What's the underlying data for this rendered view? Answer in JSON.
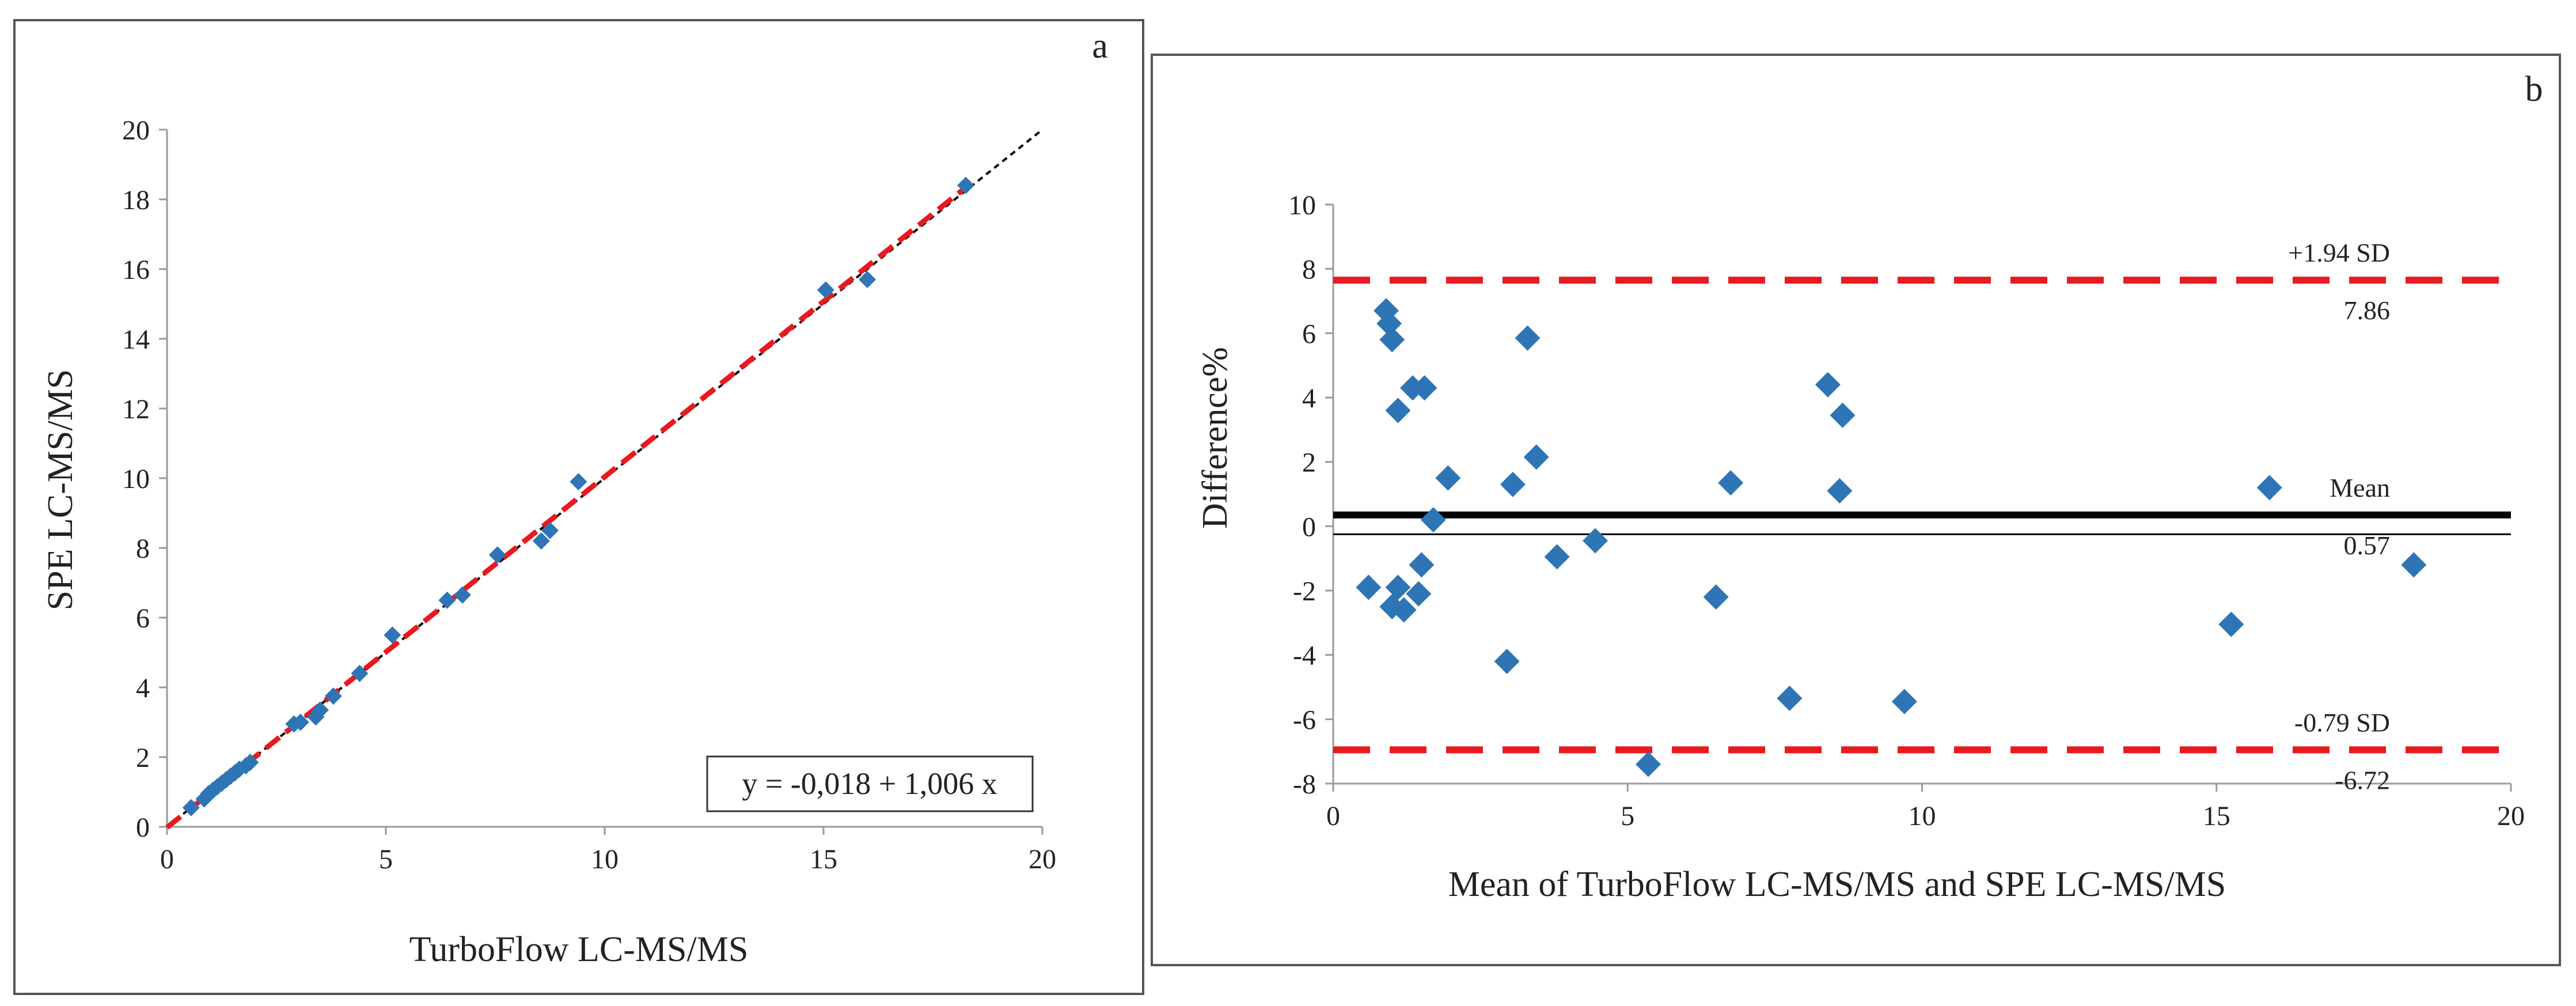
{
  "chart_data": [
    {
      "panel_label": "a",
      "type": "scatter",
      "xlabel": "TurboFlow LC-MS/MS",
      "ylabel": "SPE LC-MS/MS",
      "xlim": [
        0,
        20
      ],
      "ylim": [
        0,
        20
      ],
      "xticks": [
        0,
        5,
        10,
        15,
        20
      ],
      "yticks": [
        0,
        2,
        4,
        6,
        8,
        10,
        12,
        14,
        16,
        18,
        20
      ],
      "grid": false,
      "points": [
        {
          "x": 0.55,
          "y": 0.55
        },
        {
          "x": 0.85,
          "y": 0.8
        },
        {
          "x": 0.95,
          "y": 0.95
        },
        {
          "x": 1.05,
          "y": 1.05
        },
        {
          "x": 1.15,
          "y": 1.15
        },
        {
          "x": 1.25,
          "y": 1.25
        },
        {
          "x": 1.35,
          "y": 1.35
        },
        {
          "x": 1.45,
          "y": 1.45
        },
        {
          "x": 1.55,
          "y": 1.55
        },
        {
          "x": 1.65,
          "y": 1.65
        },
        {
          "x": 1.8,
          "y": 1.75
        },
        {
          "x": 1.9,
          "y": 1.85
        },
        {
          "x": 2.9,
          "y": 2.95
        },
        {
          "x": 3.05,
          "y": 3.0
        },
        {
          "x": 3.4,
          "y": 3.15
        },
        {
          "x": 3.5,
          "y": 3.35
        },
        {
          "x": 3.8,
          "y": 3.75
        },
        {
          "x": 4.4,
          "y": 4.4
        },
        {
          "x": 5.15,
          "y": 5.5
        },
        {
          "x": 6.4,
          "y": 6.5
        },
        {
          "x": 6.75,
          "y": 6.65
        },
        {
          "x": 7.55,
          "y": 7.8
        },
        {
          "x": 8.55,
          "y": 8.2
        },
        {
          "x": 8.75,
          "y": 8.5
        },
        {
          "x": 9.4,
          "y": 9.9
        },
        {
          "x": 15.05,
          "y": 15.4
        },
        {
          "x": 16.0,
          "y": 15.7
        },
        {
          "x": 18.25,
          "y": 18.4
        }
      ],
      "regression": {
        "intercept": -0.018,
        "slope": 1.006,
        "x_range": [
          0,
          18.4
        ]
      },
      "identity_line": {
        "x_range": [
          0,
          20
        ]
      },
      "equation_label": "y = -0,018 + 1,006 x",
      "colors": {
        "points": "#2e75b6",
        "regression": "#e8191f",
        "identity": "#000000"
      }
    },
    {
      "panel_label": "b",
      "type": "scatter",
      "xlabel": "Mean of TurboFlow LC-MS/MS and SPE LC-MS/MS",
      "ylabel": "Difference%",
      "xlim": [
        0,
        20
      ],
      "ylim": [
        -8,
        10
      ],
      "xticks": [
        0,
        5,
        10,
        15,
        20
      ],
      "yticks": [
        -8,
        -6,
        -4,
        -2,
        0,
        2,
        4,
        6,
        8,
        10
      ],
      "grid": false,
      "points": [
        {
          "x": 0.6,
          "y": -1.9
        },
        {
          "x": 0.9,
          "y": 6.7
        },
        {
          "x": 0.95,
          "y": 6.3
        },
        {
          "x": 1.0,
          "y": 5.8
        },
        {
          "x": 1.0,
          "y": -2.5
        },
        {
          "x": 1.1,
          "y": 3.6
        },
        {
          "x": 1.1,
          "y": -1.9
        },
        {
          "x": 1.2,
          "y": -2.6
        },
        {
          "x": 1.35,
          "y": 4.3
        },
        {
          "x": 1.45,
          "y": -2.1
        },
        {
          "x": 1.5,
          "y": -1.2
        },
        {
          "x": 1.55,
          "y": 4.3
        },
        {
          "x": 1.7,
          "y": 0.2
        },
        {
          "x": 1.95,
          "y": 1.5
        },
        {
          "x": 2.95,
          "y": -4.2
        },
        {
          "x": 3.05,
          "y": 1.3
        },
        {
          "x": 3.3,
          "y": 5.85
        },
        {
          "x": 3.45,
          "y": 2.15
        },
        {
          "x": 3.8,
          "y": -0.95
        },
        {
          "x": 4.45,
          "y": -0.45
        },
        {
          "x": 5.35,
          "y": -7.4
        },
        {
          "x": 6.5,
          "y": -2.2
        },
        {
          "x": 6.75,
          "y": 1.35
        },
        {
          "x": 7.75,
          "y": -5.35
        },
        {
          "x": 8.4,
          "y": 4.4
        },
        {
          "x": 8.6,
          "y": 1.1
        },
        {
          "x": 8.65,
          "y": 3.45
        },
        {
          "x": 9.7,
          "y": -5.45
        },
        {
          "x": 15.25,
          "y": -3.05
        },
        {
          "x": 15.9,
          "y": 1.2
        },
        {
          "x": 18.35,
          "y": -1.2
        }
      ],
      "reference_lines": [
        {
          "label": "+1.94 SD",
          "value_label": "7.86",
          "y": 7.65,
          "style": "dashed",
          "color": "#e8191f"
        },
        {
          "label": "Mean",
          "value_label": "0.57",
          "y": 0.35,
          "style": "solid-thick",
          "color": "#000000"
        },
        {
          "label": "-0.79 SD",
          "value_label": "-6.72",
          "y": -6.95,
          "style": "dashed",
          "color": "#e8191f"
        }
      ],
      "zero_line": {
        "y": -0.25
      },
      "colors": {
        "points": "#2e75b6"
      }
    }
  ]
}
